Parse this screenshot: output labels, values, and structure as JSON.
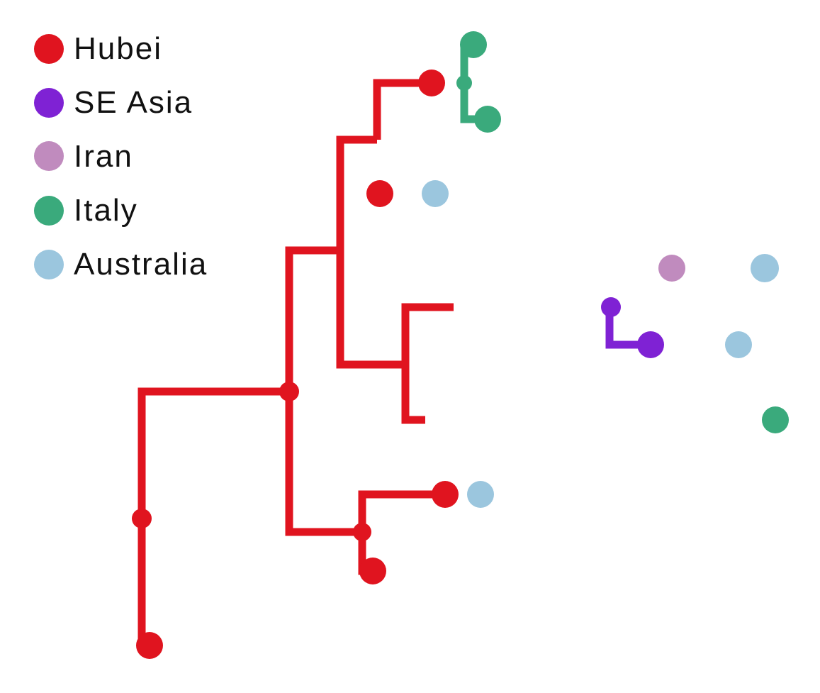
{
  "legend": {
    "items": [
      {
        "label": "Hubei",
        "color": "#e0141f"
      },
      {
        "label": "SE Asia",
        "color": "#7f22d4"
      },
      {
        "label": "Iran",
        "color": "#c08bbe"
      },
      {
        "label": "Italy",
        "color": "#3aaa7c"
      },
      {
        "label": "Australia",
        "color": "#9bc6de"
      }
    ]
  }
}
